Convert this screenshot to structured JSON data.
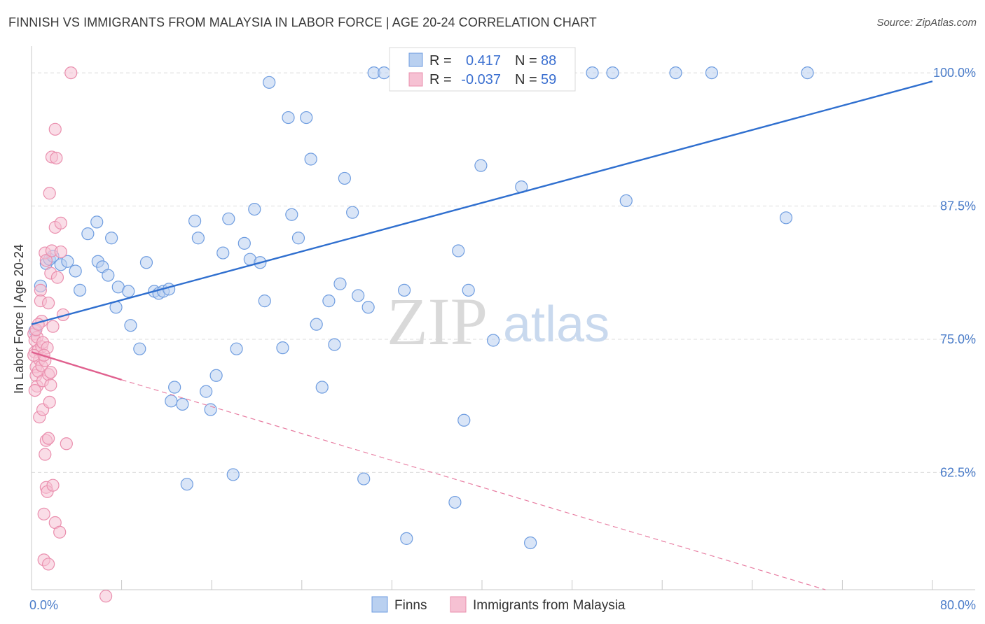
{
  "title": "FINNISH VS IMMIGRANTS FROM MALAYSIA IN LABOR FORCE | AGE 20-24 CORRELATION CHART",
  "source": "Source: ZipAtlas.com",
  "watermark": {
    "zip": "ZIP",
    "atlas": "atlas"
  },
  "chart_data": {
    "type": "scatter",
    "ylabel": "In Labor Force | Age 20-24",
    "xlim": [
      0,
      80
    ],
    "ylim": [
      51.5,
      102.5
    ],
    "x_tick_labels": [
      {
        "value": 0,
        "label": "0.0%"
      },
      {
        "value": 80,
        "label": "80.0%"
      }
    ],
    "y_tick_labels": [
      {
        "value": 100,
        "label": "100.0%"
      },
      {
        "value": 87.5,
        "label": "87.5%"
      },
      {
        "value": 75,
        "label": "75.0%"
      },
      {
        "value": 62.5,
        "label": "62.5%"
      }
    ],
    "grid": "horizontal dashed",
    "legend_position": "bottom-center",
    "stats_box": [
      {
        "r_key": "R = ",
        "r_value": "0.417",
        "n_key": "N = ",
        "n_value": "88"
      },
      {
        "r_key": "R = ",
        "r_value": "-0.037",
        "n_key": "N = ",
        "n_value": "59"
      }
    ],
    "series": [
      {
        "name": "Finns",
        "color": "#6f9de0",
        "fill": "#b9d0f0",
        "trend": {
          "x": [
            0,
            80
          ],
          "y": [
            76.4,
            99.2
          ],
          "style": "solid",
          "color": "#2f6fcf"
        },
        "points": [
          [
            0.3,
            75.8
          ],
          [
            0.8,
            80.0
          ],
          [
            1.3,
            82.1
          ],
          [
            1.6,
            82.5
          ],
          [
            1.9,
            82.8
          ],
          [
            2.6,
            82.0
          ],
          [
            3.2,
            82.3
          ],
          [
            3.9,
            81.4
          ],
          [
            4.3,
            79.6
          ],
          [
            5.0,
            84.9
          ],
          [
            5.9,
            82.3
          ],
          [
            5.8,
            86.0
          ],
          [
            6.3,
            81.8
          ],
          [
            6.8,
            81.0
          ],
          [
            7.1,
            84.5
          ],
          [
            7.5,
            78.0
          ],
          [
            7.7,
            79.9
          ],
          [
            8.6,
            79.5
          ],
          [
            8.8,
            76.3
          ],
          [
            9.6,
            74.1
          ],
          [
            10.2,
            82.2
          ],
          [
            10.9,
            79.5
          ],
          [
            11.3,
            79.3
          ],
          [
            11.7,
            79.5
          ],
          [
            12.2,
            79.7
          ],
          [
            12.4,
            69.2
          ],
          [
            12.7,
            70.5
          ],
          [
            13.4,
            68.9
          ],
          [
            13.8,
            61.4
          ],
          [
            14.5,
            86.1
          ],
          [
            14.8,
            84.5
          ],
          [
            15.5,
            70.1
          ],
          [
            15.9,
            68.4
          ],
          [
            16.4,
            71.6
          ],
          [
            17.0,
            83.1
          ],
          [
            17.5,
            86.3
          ],
          [
            17.9,
            62.3
          ],
          [
            18.2,
            74.1
          ],
          [
            18.9,
            84.0
          ],
          [
            19.4,
            82.5
          ],
          [
            19.8,
            87.2
          ],
          [
            20.3,
            82.2
          ],
          [
            20.7,
            78.6
          ],
          [
            21.1,
            99.1
          ],
          [
            22.3,
            74.2
          ],
          [
            22.8,
            95.8
          ],
          [
            23.1,
            86.7
          ],
          [
            23.7,
            84.5
          ],
          [
            24.4,
            95.8
          ],
          [
            24.8,
            91.9
          ],
          [
            25.3,
            76.4
          ],
          [
            25.8,
            70.5
          ],
          [
            26.4,
            78.6
          ],
          [
            26.9,
            74.5
          ],
          [
            27.4,
            80.2
          ],
          [
            27.8,
            90.1
          ],
          [
            28.5,
            86.9
          ],
          [
            29.0,
            79.1
          ],
          [
            29.5,
            61.9
          ],
          [
            29.9,
            78.0
          ],
          [
            30.4,
            100.0
          ],
          [
            31.3,
            100.0
          ],
          [
            32.8,
            100.0
          ],
          [
            33.1,
            79.6
          ],
          [
            33.3,
            56.3
          ],
          [
            34.3,
            100.0
          ],
          [
            34.7,
            100.0
          ],
          [
            35.4,
            100.0
          ],
          [
            37.3,
            100.0
          ],
          [
            37.6,
            59.7
          ],
          [
            37.9,
            83.3
          ],
          [
            38.4,
            67.4
          ],
          [
            38.8,
            79.6
          ],
          [
            39.3,
            100.0
          ],
          [
            39.9,
            91.3
          ],
          [
            41.0,
            74.9
          ],
          [
            42.3,
            100.0
          ],
          [
            43.5,
            89.3
          ],
          [
            44.3,
            55.9
          ],
          [
            45.0,
            100.0
          ],
          [
            46.0,
            100.0
          ],
          [
            49.8,
            100.0
          ],
          [
            51.6,
            100.0
          ],
          [
            52.8,
            88.0
          ],
          [
            57.2,
            100.0
          ],
          [
            60.4,
            100.0
          ],
          [
            67.0,
            86.4
          ],
          [
            68.9,
            100.0
          ]
        ]
      },
      {
        "name": "Immigrants from Malaysia",
        "color": "#ea8fae",
        "fill": "#f6c1d3",
        "trend": {
          "x": [
            0,
            8
          ],
          "y": [
            73.8,
            71.2
          ],
          "style": "solid",
          "color": "#e0608e"
        },
        "trend_extended": {
          "x": [
            8,
            70.5
          ],
          "y": [
            71.2,
            51.5
          ],
          "style": "dashed",
          "color": "#e87fa3"
        },
        "points": [
          [
            0.2,
            75.5
          ],
          [
            0.3,
            74.9
          ],
          [
            0.3,
            73.8
          ],
          [
            0.4,
            72.4
          ],
          [
            0.4,
            71.6
          ],
          [
            0.5,
            75.2
          ],
          [
            0.5,
            70.6
          ],
          [
            0.6,
            74.0
          ],
          [
            0.6,
            72.0
          ],
          [
            0.7,
            73.1
          ],
          [
            0.7,
            67.7
          ],
          [
            0.8,
            79.6
          ],
          [
            0.8,
            78.6
          ],
          [
            0.9,
            74.3
          ],
          [
            0.9,
            72.5
          ],
          [
            1.0,
            74.7
          ],
          [
            1.0,
            71.1
          ],
          [
            1.0,
            68.4
          ],
          [
            1.1,
            58.6
          ],
          [
            1.1,
            54.3
          ],
          [
            1.2,
            83.1
          ],
          [
            1.2,
            64.2
          ],
          [
            1.3,
            82.4
          ],
          [
            1.3,
            65.5
          ],
          [
            1.3,
            61.1
          ],
          [
            1.4,
            60.7
          ],
          [
            1.4,
            74.2
          ],
          [
            1.5,
            71.7
          ],
          [
            1.5,
            65.7
          ],
          [
            1.5,
            53.9
          ],
          [
            1.5,
            78.4
          ],
          [
            1.6,
            88.7
          ],
          [
            1.6,
            69.1
          ],
          [
            1.7,
            81.2
          ],
          [
            1.7,
            71.9
          ],
          [
            1.7,
            70.7
          ],
          [
            1.8,
            92.1
          ],
          [
            1.8,
            83.3
          ],
          [
            1.9,
            61.3
          ],
          [
            2.1,
            94.7
          ],
          [
            2.1,
            85.5
          ],
          [
            2.1,
            57.8
          ],
          [
            2.2,
            92.0
          ],
          [
            2.3,
            80.8
          ],
          [
            2.5,
            56.9
          ],
          [
            2.6,
            85.9
          ],
          [
            2.6,
            83.2
          ],
          [
            2.8,
            77.3
          ],
          [
            3.1,
            65.2
          ],
          [
            3.5,
            100.0
          ],
          [
            6.6,
            50.9
          ],
          [
            0.2,
            73.5
          ],
          [
            0.9,
            76.7
          ],
          [
            1.2,
            73.0
          ],
          [
            0.4,
            75.9
          ],
          [
            0.6,
            76.4
          ],
          [
            1.1,
            73.5
          ],
          [
            0.3,
            70.2
          ],
          [
            1.9,
            76.2
          ]
        ]
      }
    ]
  }
}
